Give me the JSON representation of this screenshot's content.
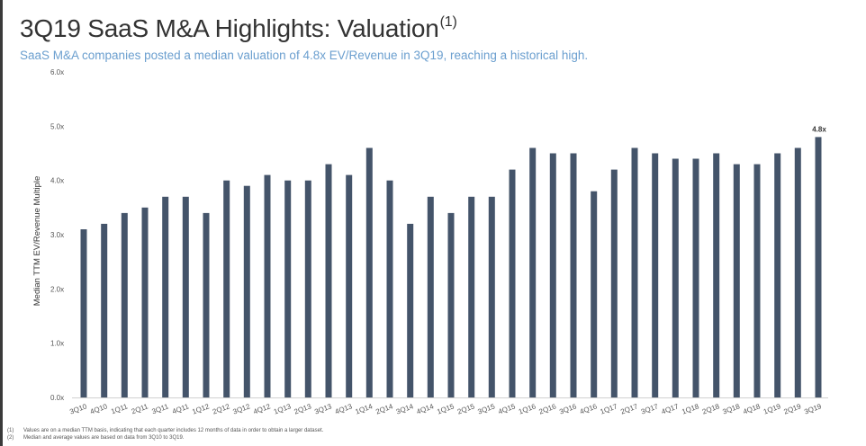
{
  "header": {
    "title": "3Q19 SaaS M&A Highlights: Valuation",
    "title_superscript": "(1)",
    "subtitle": "SaaS M&A companies posted a median valuation of 4.8x EV/Revenue in 3Q19, reaching a historical high."
  },
  "colors": {
    "bar": "#44546a",
    "subtitle": "#6b9fcf",
    "title": "#333333"
  },
  "chart_data": {
    "type": "bar",
    "title": "",
    "xlabel": "",
    "ylabel": "Median TTM EV/Revenue Multiple",
    "ylim": [
      0,
      6
    ],
    "yticks": [
      "0.0x",
      "1.0x",
      "2.0x",
      "3.0x",
      "4.0x",
      "5.0x",
      "6.0x"
    ],
    "ytick_values": [
      0,
      1,
      2,
      3,
      4,
      5,
      6
    ],
    "grid": false,
    "categories": [
      "3Q10",
      "4Q10",
      "1Q11",
      "2Q11",
      "3Q11",
      "4Q11",
      "1Q12",
      "2Q12",
      "3Q12",
      "4Q12",
      "1Q13",
      "2Q13",
      "3Q13",
      "4Q13",
      "1Q14",
      "2Q14",
      "3Q14",
      "4Q14",
      "1Q15",
      "2Q15",
      "3Q15",
      "4Q15",
      "1Q16",
      "2Q16",
      "3Q16",
      "4Q16",
      "1Q17",
      "2Q17",
      "3Q17",
      "4Q17",
      "1Q18",
      "2Q18",
      "3Q18",
      "4Q18",
      "1Q19",
      "2Q19",
      "3Q19"
    ],
    "values": [
      3.1,
      3.2,
      3.4,
      3.5,
      3.7,
      3.7,
      3.4,
      4.0,
      3.9,
      4.1,
      4.0,
      4.0,
      4.3,
      4.1,
      4.6,
      4.0,
      3.2,
      3.7,
      3.4,
      3.7,
      3.7,
      4.2,
      4.6,
      4.5,
      4.5,
      3.8,
      4.2,
      4.6,
      4.5,
      4.4,
      4.4,
      4.5,
      4.3,
      4.3,
      4.5,
      4.6,
      4.8
    ],
    "data_labels": [
      {
        "category": "3Q19",
        "text": "4.8x"
      }
    ]
  },
  "footnotes": [
    {
      "num": "(1)",
      "text": "Values are on a median TTM basis, indicating that each quarter includes 12 months of data in order to obtain a larger dataset."
    },
    {
      "num": "(2)",
      "text": "Median and average values are based on data from 3Q10 to 3Q19."
    }
  ]
}
